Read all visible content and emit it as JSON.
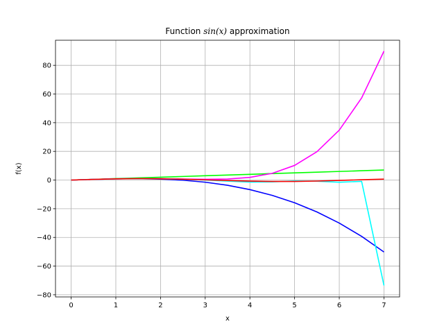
{
  "chart_data": {
    "type": "line",
    "title_prefix": "Function ",
    "title_math": "sin(x)",
    "title_suffix": " approximation",
    "xlabel": "x",
    "ylabel": "f(x)",
    "xlim": [
      -0.35,
      7.35
    ],
    "ylim": [
      -81.5,
      97.5
    ],
    "x_ticks": [
      0,
      1,
      2,
      3,
      4,
      5,
      6,
      7
    ],
    "y_ticks": [
      -80,
      -60,
      -40,
      -20,
      0,
      20,
      40,
      60,
      80
    ],
    "grid": true,
    "x": [
      0,
      0.5,
      1,
      1.5,
      2,
      2.5,
      3,
      3.5,
      4,
      4.5,
      5,
      5.5,
      6,
      6.5,
      7
    ],
    "series": [
      {
        "color": "#00ff00",
        "values": [
          0,
          0.5,
          1,
          1.5,
          2,
          2.5,
          3,
          3.5,
          4,
          4.5,
          5,
          5.5,
          6,
          6.5,
          7
        ]
      },
      {
        "color": "#0000ff",
        "values": [
          0,
          0.479,
          0.833,
          0.938,
          0.667,
          -0.104,
          -1.5,
          -3.646,
          -6.667,
          -10.688,
          -15.833,
          -22.229,
          -30,
          -39.271,
          -50.167
        ]
      },
      {
        "color": "#ff00ff",
        "values": [
          0,
          0.479,
          0.842,
          1.001,
          0.933,
          0.71,
          0.525,
          0.731,
          1.867,
          4.688,
          10.208,
          19.747,
          34.8,
          57.233,
          89.875
        ]
      },
      {
        "color": "#00ffff",
        "values": [
          0,
          0.479,
          0.841,
          0.997,
          0.908,
          0.588,
          -0.0246,
          -0.742,
          -1.384,
          -1.3,
          -0.63,
          -0.8,
          -1.5,
          -0.9,
          -73.5
        ]
      },
      {
        "color": "#ff0000",
        "values": [
          0,
          0.479,
          0.841,
          0.997,
          0.909,
          0.599,
          0.141,
          -0.35,
          -0.757,
          -0.978,
          -0.959,
          -0.706,
          -0.279,
          0.215,
          0.657
        ]
      }
    ]
  }
}
